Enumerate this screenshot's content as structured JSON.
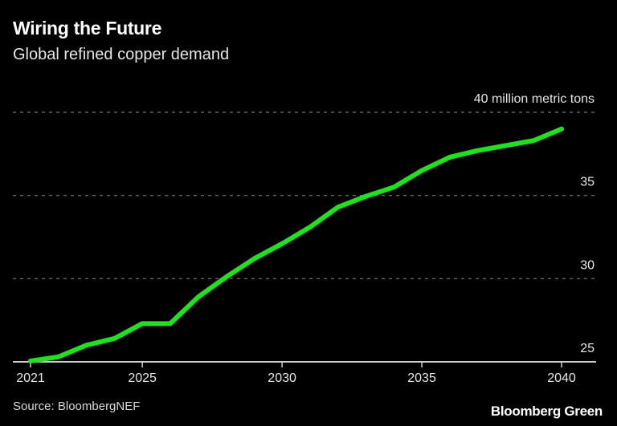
{
  "header": {
    "title": "Wiring the Future",
    "subtitle": "Global refined copper demand"
  },
  "footer": {
    "source": "Source: BloombergNEF",
    "brand": "Bloomberg Green"
  },
  "chart_data": {
    "type": "line",
    "title": "Wiring the Future",
    "subtitle": "Global refined copper demand",
    "x": [
      2021,
      2022,
      2023,
      2024,
      2025,
      2026,
      2027,
      2028,
      2029,
      2030,
      2031,
      2032,
      2033,
      2034,
      2035,
      2036,
      2037,
      2038,
      2039,
      2040
    ],
    "series": [
      {
        "values": [
          25.05,
          25.3,
          26.0,
          26.4,
          27.3,
          27.3,
          28.9,
          30.1,
          31.2,
          32.1,
          33.1,
          34.3,
          34.95,
          35.5,
          36.5,
          37.3,
          37.7,
          38.0,
          38.3,
          39.0
        ],
        "color": "#1fe11f"
      }
    ],
    "xlim": [
      2021,
      2040
    ],
    "ylim": [
      25,
      40
    ],
    "x_ticks": [
      "2021",
      "2025",
      "2030",
      "2035",
      "2040"
    ],
    "y_ticks": [
      "25",
      "30",
      "35",
      "40 million metric tons"
    ],
    "y_tick_values": [
      25,
      30,
      35,
      40
    ],
    "grid": "horizontal dashed",
    "y_axis_position": "right",
    "background": "#000000"
  }
}
